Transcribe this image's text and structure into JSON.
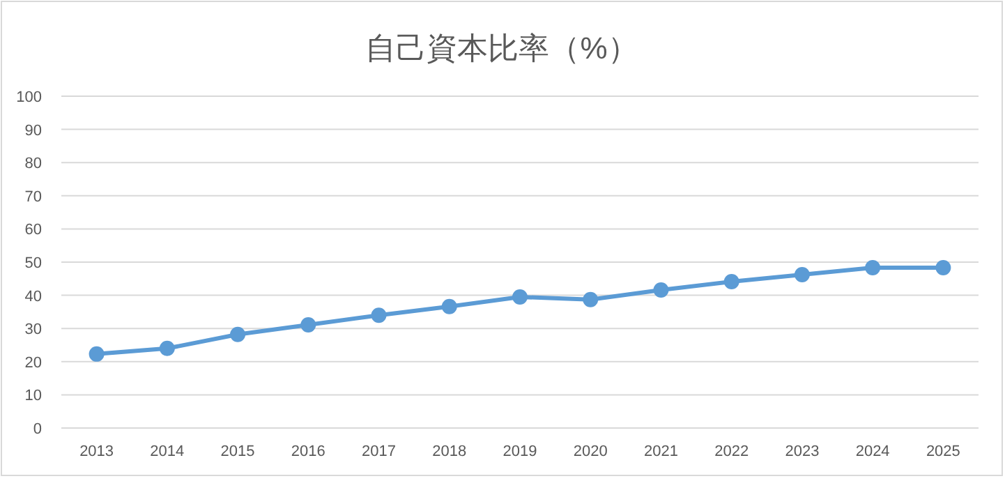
{
  "chart_data": {
    "type": "line",
    "title": "自己資本比率（%）",
    "categories": [
      "2013",
      "2014",
      "2015",
      "2016",
      "2017",
      "2018",
      "2019",
      "2020",
      "2021",
      "2022",
      "2023",
      "2024",
      "2025"
    ],
    "series": [
      {
        "color": "#5b9bd5",
        "values": [
          22.3,
          24,
          28.2,
          31.1,
          34,
          36.6,
          39.5,
          38.7,
          41.6,
          44.1,
          46.2,
          48.3,
          48.3
        ]
      }
    ],
    "ylim": [
      0,
      100
    ],
    "yticks": [
      0,
      10,
      20,
      30,
      40,
      50,
      60,
      70,
      80,
      90,
      100
    ],
    "grid": "y",
    "marker": "circle",
    "line_style": "solid"
  }
}
